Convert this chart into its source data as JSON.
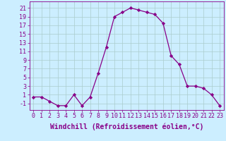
{
  "x": [
    0,
    1,
    2,
    3,
    4,
    5,
    6,
    7,
    8,
    9,
    10,
    11,
    12,
    13,
    14,
    15,
    16,
    17,
    18,
    19,
    20,
    21,
    22,
    23
  ],
  "y": [
    0.5,
    0.5,
    -0.5,
    -1.5,
    -1.5,
    1.0,
    -1.5,
    0.5,
    6.0,
    12.0,
    19.0,
    20.0,
    21.0,
    20.5,
    20.0,
    19.5,
    17.5,
    10.0,
    8.0,
    3.0,
    3.0,
    2.5,
    1.0,
    -1.5
  ],
  "line_color": "#880088",
  "marker": "D",
  "marker_size": 2.2,
  "bg_color": "#cceeff",
  "grid_color": "#aacccc",
  "xlabel": "Windchill (Refroidissement éolien,°C)",
  "xlabel_fontsize": 7,
  "ytick_values": [
    -1,
    1,
    3,
    5,
    7,
    9,
    11,
    13,
    15,
    17,
    19,
    21
  ],
  "xtick_labels": [
    "0",
    "1",
    "2",
    "3",
    "4",
    "5",
    "6",
    "7",
    "8",
    "9",
    "10",
    "11",
    "12",
    "13",
    "14",
    "15",
    "16",
    "17",
    "18",
    "19",
    "20",
    "21",
    "22",
    "23"
  ],
  "ylim": [
    -2.5,
    22.5
  ],
  "xlim": [
    -0.5,
    23.5
  ],
  "tick_fontsize": 6
}
